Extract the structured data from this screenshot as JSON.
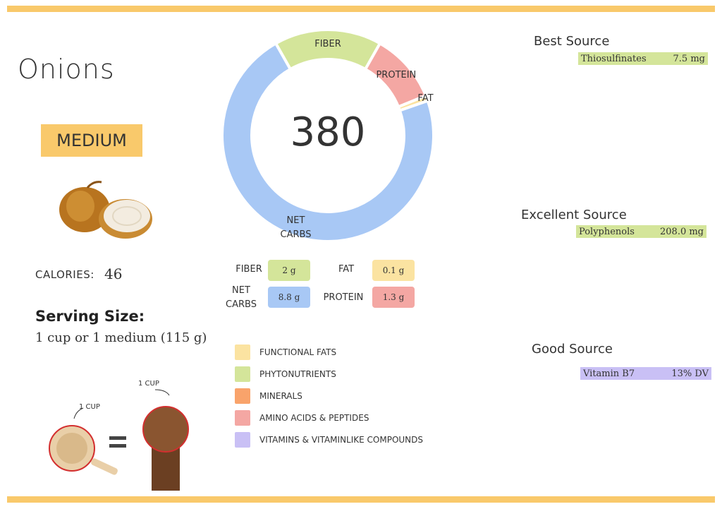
{
  "header": {
    "title": "Onions",
    "size": "MEDIUM"
  },
  "calories": {
    "label": "CALORIES:",
    "value": "46"
  },
  "serving": {
    "label": "Serving Size:",
    "text": "1 cup or 1 medium (115 g)"
  },
  "illustration": {
    "cup_label": "1 CUP",
    "fist_label": "1 CUP"
  },
  "donut": {
    "center": "380",
    "segments": [
      {
        "name": "FIBER",
        "value": 2,
        "value_label": "2 g",
        "color": "#d4e59a"
      },
      {
        "name": "PROTEIN",
        "value": 1.3,
        "value_label": "1.3 g",
        "color": "#f4a7a3"
      },
      {
        "name": "FAT",
        "value": 0.1,
        "value_label": "0.1 g",
        "color": "#fbe3a1"
      },
      {
        "name": "NET CARBS",
        "value": 8.8,
        "value_label": "8.8 g",
        "color": "#a8c8f5"
      }
    ]
  },
  "legend": [
    {
      "name": "FUNCTIONAL FATS",
      "color": "#fbe3a1"
    },
    {
      "name": "PHYTONUTRIENTS",
      "color": "#d4e59a"
    },
    {
      "name": "MINERALS",
      "color": "#f9a36b"
    },
    {
      "name": "AMINO ACIDS & PEPTIDES",
      "color": "#f4a7a3"
    },
    {
      "name": "VITAMINS & VITAMINLIKE COMPOUNDS",
      "color": "#c9c0f5"
    }
  ],
  "sources": [
    {
      "heading": "Best Source",
      "items": [
        {
          "name": "Thiosulfinates",
          "amount": "7.5 mg",
          "color": "#d4e59a"
        }
      ]
    },
    {
      "heading": "Excellent Source",
      "items": [
        {
          "name": "Polyphenols",
          "amount": "208.0 mg",
          "color": "#d4e59a"
        }
      ]
    },
    {
      "heading": "Good Source",
      "items": [
        {
          "name": "Vitamin B7",
          "amount": "13% DV",
          "color": "#c9c0f5"
        }
      ]
    }
  ]
}
